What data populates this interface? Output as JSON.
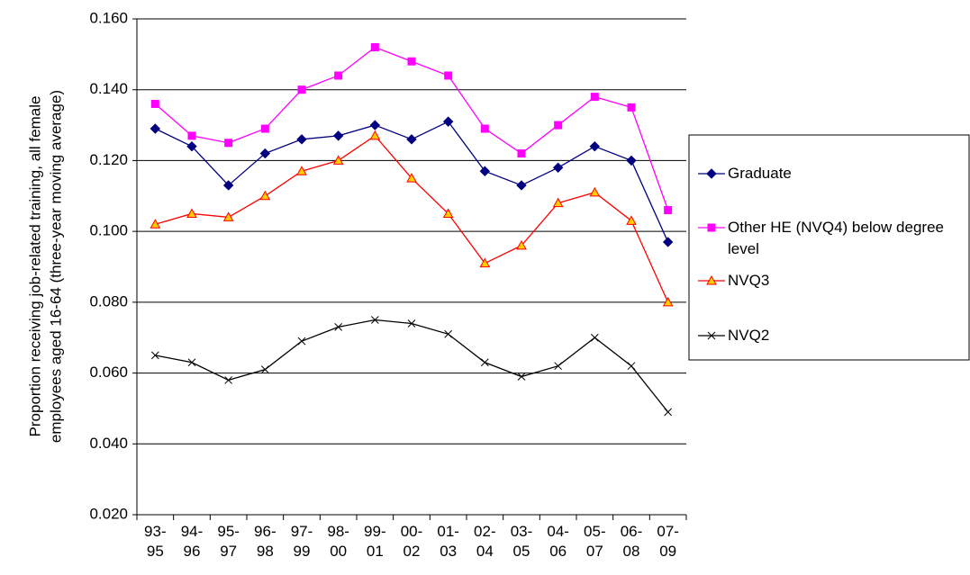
{
  "chart_data": {
    "type": "line",
    "y_label": [
      "Proportion receiving job-related training, all female",
      "employees aged 16-64 (three-year moving average)"
    ],
    "categories": [
      "93-95",
      "94-96",
      "95-97",
      "96-98",
      "97-99",
      "98-00",
      "99-01",
      "00-02",
      "01-03",
      "02-04",
      "03-05",
      "04-06",
      "05-07",
      "06-08",
      "07-09"
    ],
    "series": [
      {
        "name": "Graduate",
        "color": "#000080",
        "marker": "diamond",
        "marker_fill": "#000080",
        "values": [
          0.129,
          0.124,
          0.113,
          0.122,
          0.126,
          0.127,
          0.13,
          0.126,
          0.131,
          0.117,
          0.113,
          0.118,
          0.124,
          0.12,
          0.097
        ]
      },
      {
        "name": "Other HE (NVQ4) below degree level",
        "color": "#ff00ff",
        "marker": "square",
        "marker_fill": "#ff00ff",
        "values": [
          0.136,
          0.127,
          0.125,
          0.129,
          0.14,
          0.144,
          0.152,
          0.148,
          0.144,
          0.129,
          0.122,
          0.13,
          0.138,
          0.135,
          0.106
        ]
      },
      {
        "name": "NVQ3",
        "color": "#ff0000",
        "marker": "triangle",
        "marker_fill": "#ffcc00",
        "values": [
          0.102,
          0.105,
          0.104,
          0.11,
          0.117,
          0.12,
          0.127,
          0.115,
          0.105,
          0.091,
          0.096,
          0.108,
          0.111,
          0.103,
          0.08
        ]
      },
      {
        "name": "NVQ2",
        "color": "#000000",
        "marker": "x",
        "marker_fill": "none",
        "values": [
          0.065,
          0.063,
          0.058,
          0.061,
          0.069,
          0.073,
          0.075,
          0.074,
          0.071,
          0.063,
          0.059,
          0.062,
          0.07,
          0.062,
          0.049
        ]
      }
    ],
    "ylim": [
      0.02,
      0.16
    ],
    "yticks": [
      {
        "value": 0.02,
        "label": "0.020"
      },
      {
        "value": 0.04,
        "label": "0.040"
      },
      {
        "value": 0.06,
        "label": "0.060"
      },
      {
        "value": 0.08,
        "label": "0.080"
      },
      {
        "value": 0.1,
        "label": "0.100"
      },
      {
        "value": 0.12,
        "label": "0.120"
      },
      {
        "value": 0.14,
        "label": "0.140"
      },
      {
        "value": 0.16,
        "label": "0.160"
      }
    ],
    "grid": true,
    "legend": "right"
  }
}
